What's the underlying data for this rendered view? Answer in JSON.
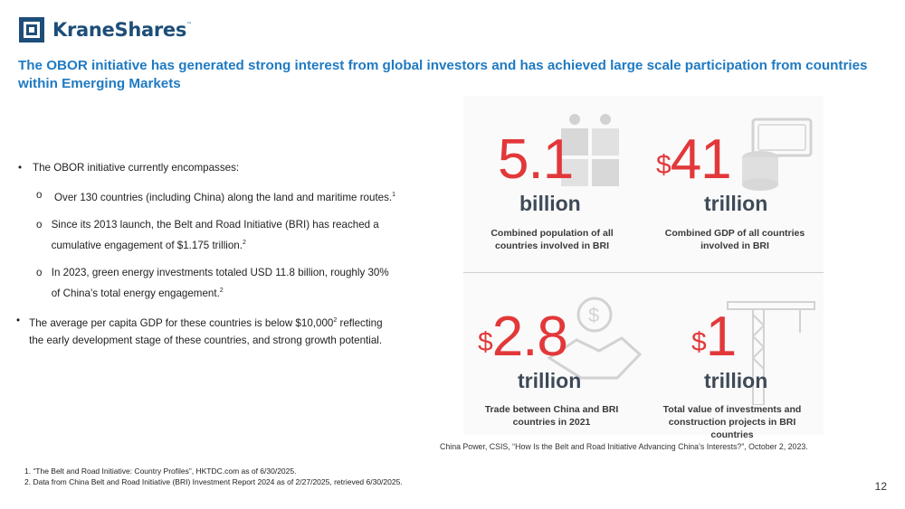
{
  "logo": {
    "name": "KraneShares",
    "tm": "™"
  },
  "headline": "The OBOR initiative has generated strong interest from global investors and has achieved large scale participation from countries within Emerging Markets",
  "bullets": {
    "b1": "The OBOR initiative currently encompasses:",
    "b1_subs": [
      {
        "text": "Over 130 countries (including China) along the land and maritime routes.",
        "note": "1"
      },
      {
        "text": "Since its 2013 launch, the Belt and Road Initiative (BRI) has reached a cumulative engagement of $1.175 trillion.",
        "note": "2"
      },
      {
        "text": "In 2023, green energy investments totaled USD 11.8 billion, roughly 30% of China’s total energy engagement.",
        "note": "2"
      }
    ],
    "b2_pre": "The average per capita GDP for these countries is below $10,000",
    "b2_note": "2",
    "b2_post": " reflecting the early development stage of these countries, and strong growth potential."
  },
  "stats": [
    {
      "dollar": "",
      "value": "5.1",
      "unit": "billion",
      "caption": "Combined population of all countries involved in BRI",
      "icon": "people-puzzle-icon"
    },
    {
      "dollar": "$",
      "value": "41",
      "unit": "trillion",
      "caption": "Combined GDP of all countries involved in BRI",
      "icon": "money-coins-icon"
    },
    {
      "dollar": "$",
      "value": "2.8",
      "unit": "trillion",
      "caption": "Trade between China and BRI countries in 2021",
      "icon": "handshake-icon"
    },
    {
      "dollar": "$",
      "value": "1",
      "unit": "trillion",
      "caption": "Total value of investments and construction projects in BRI countries",
      "icon": "crane-icon"
    }
  ],
  "source": "China Power, CSIS, “How Is the Belt and Road Initiative Advancing China’s Interests?”, October 2, 2023.",
  "footnotes": [
    "1. “The Belt and Road Initiative: Country Profiles”, HKTDC.com as of 6/30/2025.",
    "2. Data from China Belt and Road Initiative (BRI) Investment Report 2024 as of 2/27/2025, retrieved 6/30/2025."
  ],
  "page_number": "12",
  "colors": {
    "brand_blue": "#1d4e79",
    "headline_blue": "#1f7ac2",
    "stat_red": "#e2383a",
    "unit_gray": "#3e4a57"
  }
}
